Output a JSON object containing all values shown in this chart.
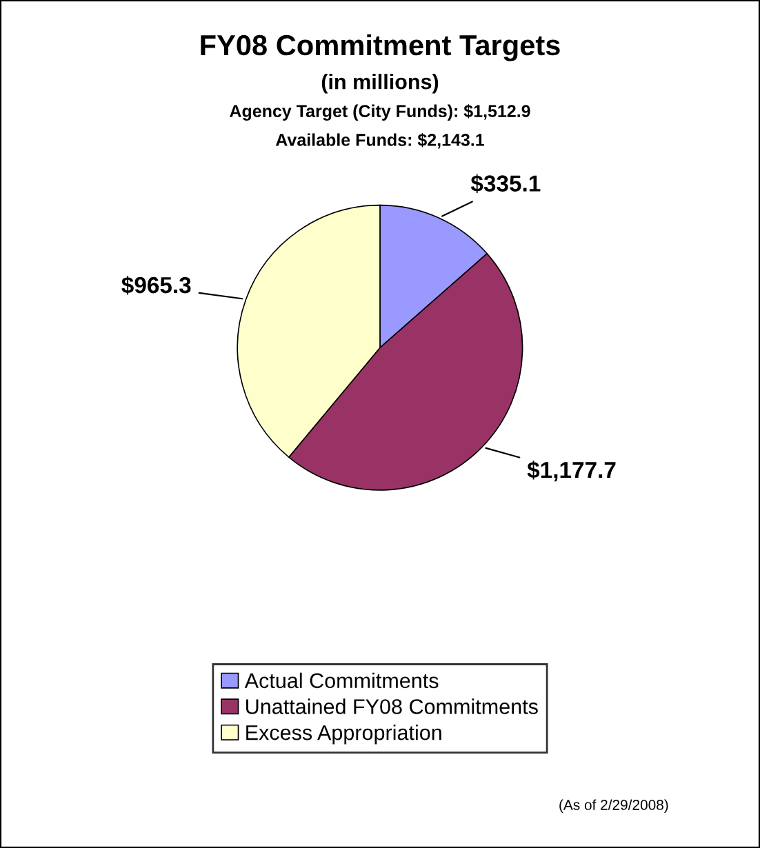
{
  "chart_data": {
    "type": "pie",
    "title": "FY08 Commitment Targets",
    "subtitle": "(in millions)",
    "annotations": [
      "Agency Target (City Funds): $1,512.9",
      "Available Funds: $2,143.1",
      "(As of 2/29/2008)"
    ],
    "categories": [
      "Actual Commitments",
      "Unattained FY08 Commitments",
      "Excess Appropriation"
    ],
    "values": [
      335.1,
      1177.7,
      965.3
    ],
    "value_labels": [
      "$335.1",
      "$1,177.7",
      "$965.3"
    ],
    "colors": [
      "#9999ff",
      "#993366",
      "#ffffcc"
    ],
    "legend": "bottom"
  }
}
